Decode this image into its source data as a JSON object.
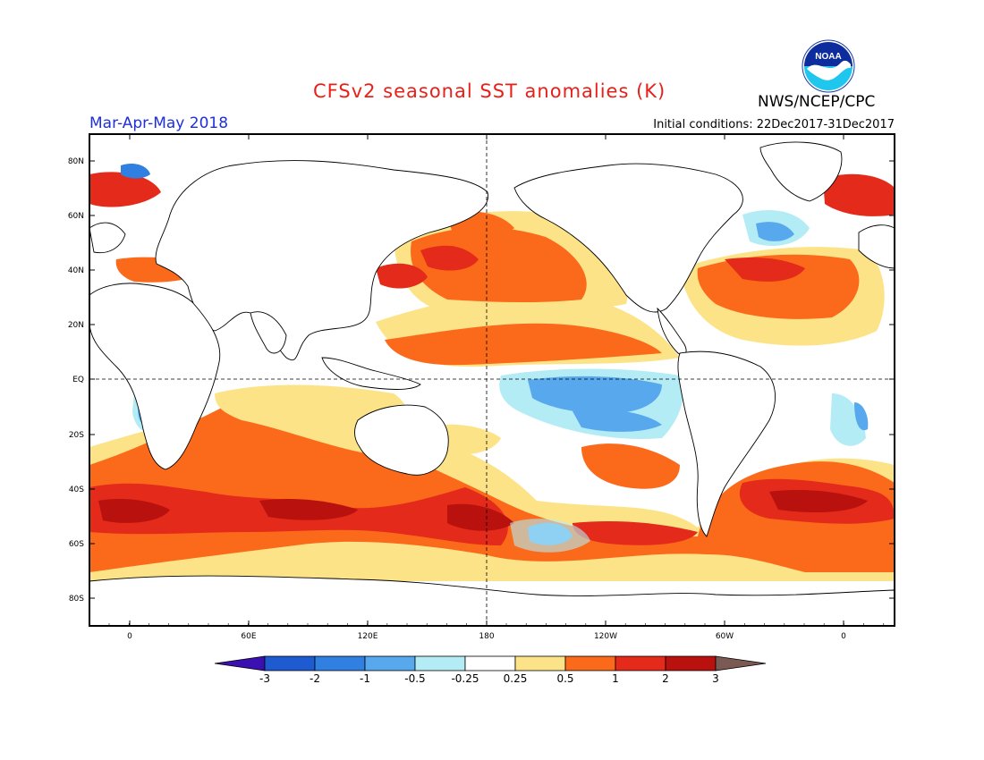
{
  "header": {
    "title": "CFSv2 seasonal SST anomalies (K)",
    "season": "Mar-Apr-May 2018",
    "initial_conditions": "Initial conditions: 22Dec2017-31Dec2017",
    "agency": "NWS/NCEP/CPC",
    "logo_text": "NOAA"
  },
  "map": {
    "lat_ticks": [
      "80N",
      "60N",
      "40N",
      "20N",
      "EQ",
      "20S",
      "40S",
      "60S",
      "80S"
    ],
    "lon_ticks": [
      "0",
      "60E",
      "120E",
      "180",
      "120W",
      "60W",
      "0"
    ]
  },
  "colorbar": {
    "labels": [
      "-3",
      "-2",
      "-1",
      "-0.5",
      "-0.25",
      "0.25",
      "0.5",
      "1",
      "2",
      "3"
    ],
    "colors": [
      "#3a10b0",
      "#1f5bd0",
      "#2f80e0",
      "#58a8ee",
      "#b4ecf5",
      "#ffffff",
      "#fde388",
      "#fb6a1a",
      "#e42a1a",
      "#b8110e",
      "#7a5a52"
    ]
  },
  "anomaly_regions": [
    {
      "name": "n-pacific-warm",
      "level": 1
    },
    {
      "name": "equatorial-east-pacific-cool",
      "level": -0.5
    },
    {
      "name": "southern-ocean-warm",
      "level": 2
    },
    {
      "name": "n-atlantic-warm",
      "level": 2
    },
    {
      "name": "labrador-cool",
      "level": -1
    }
  ]
}
